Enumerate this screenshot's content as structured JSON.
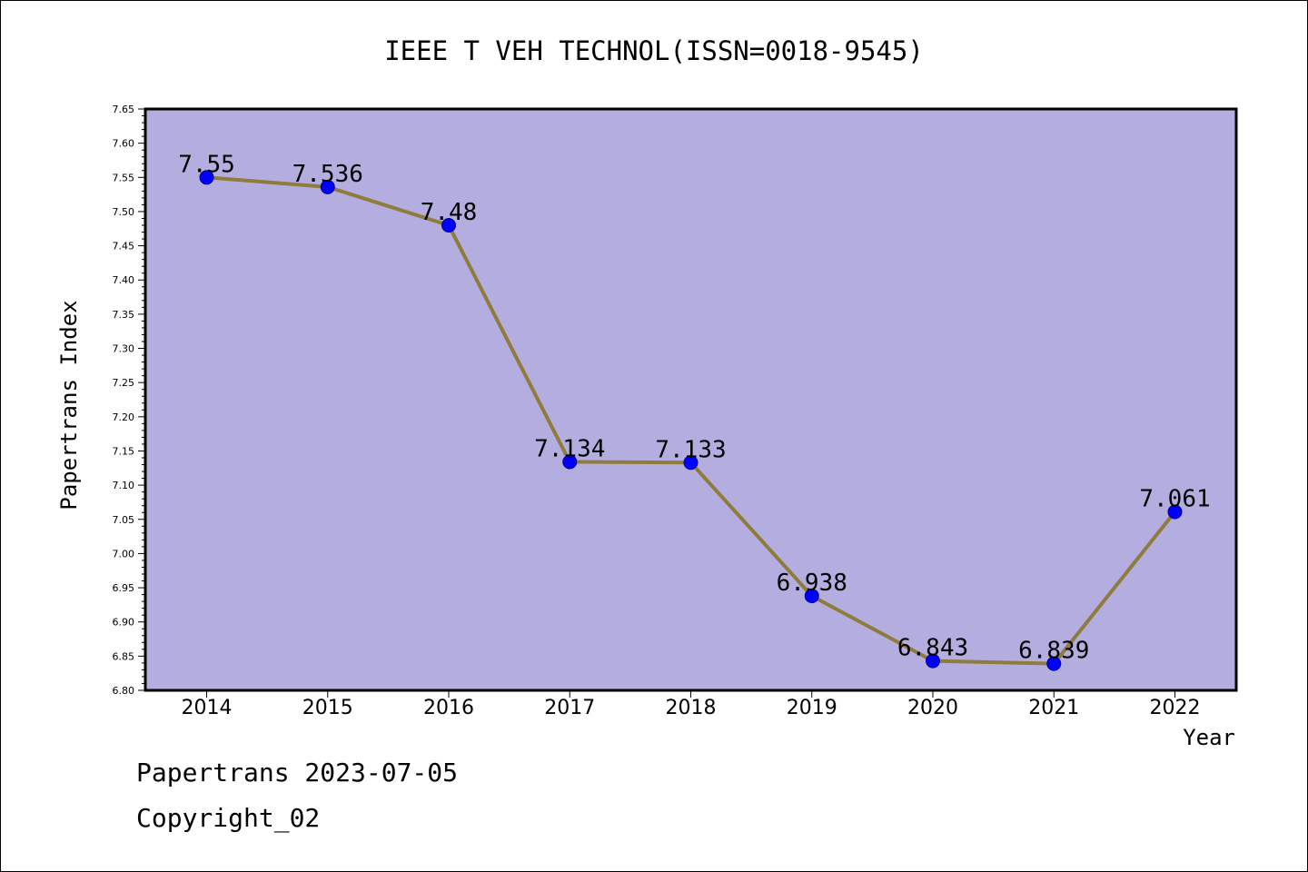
{
  "chart_data": {
    "type": "line",
    "title": "IEEE T VEH TECHNOL(ISSN=0018-9545)",
    "xlabel": "Year",
    "ylabel": "Papertrans Index",
    "categories": [
      "2014",
      "2015",
      "2016",
      "2017",
      "2018",
      "2019",
      "2020",
      "2021",
      "2022"
    ],
    "series": [
      {
        "values": [
          7.55,
          7.536,
          7.48,
          7.134,
          7.133,
          6.938,
          6.843,
          6.839,
          7.061
        ],
        "labels": [
          "7.55",
          "7.536",
          "7.48",
          "7.134",
          "7.133",
          "6.938",
          "6.843",
          "6.839",
          "7.061"
        ]
      }
    ],
    "ylim": [
      6.8,
      7.65
    ],
    "ytick_labels": [
      "6.80",
      "6.85",
      "6.90",
      "6.95",
      "7.00",
      "7.05",
      "7.10",
      "7.15",
      "7.20",
      "7.25",
      "7.30",
      "7.35",
      "7.40",
      "7.45",
      "7.50",
      "7.55",
      "7.60",
      "7.65"
    ],
    "grid": false,
    "colors": {
      "plot_background": "#b4aee0",
      "line": "#8f7b3b",
      "marker": "#0000ff"
    }
  },
  "footer": {
    "line1": "Papertrans 2023-07-05",
    "line2": "Copyright_02"
  }
}
